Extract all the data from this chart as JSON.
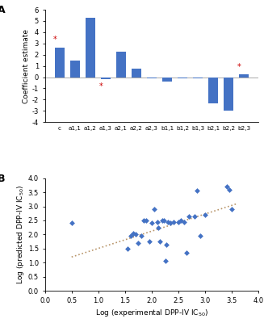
{
  "panel_a": {
    "categories": [
      "c",
      "a1,1",
      "a1,2",
      "a1,3",
      "a2,1",
      "a2,2",
      "a2,3",
      "b1,1",
      "b1,2",
      "b1,3",
      "b2,1",
      "b2,2",
      "b2,3"
    ],
    "values": [
      2.65,
      1.45,
      5.25,
      -0.2,
      2.25,
      0.75,
      -0.12,
      -0.38,
      -0.08,
      -0.08,
      -2.35,
      -3.0,
      0.22
    ],
    "significant": [
      true,
      false,
      false,
      true,
      false,
      false,
      false,
      false,
      false,
      false,
      false,
      false,
      true
    ],
    "bar_color": "#4472c4",
    "star_color": "#cc0000",
    "ylabel": "Coefficient estimate",
    "ylim": [
      -4,
      6
    ],
    "yticks": [
      -4,
      -3,
      -2,
      -1,
      0,
      1,
      2,
      3,
      4,
      5,
      6
    ],
    "panel_label": "A"
  },
  "panel_b": {
    "scatter_x": [
      0.5,
      1.55,
      1.6,
      1.65,
      1.7,
      1.75,
      1.8,
      1.85,
      1.9,
      1.95,
      2.0,
      2.05,
      2.1,
      2.12,
      2.15,
      2.2,
      2.22,
      2.25,
      2.27,
      2.3,
      2.35,
      2.4,
      2.5,
      2.55,
      2.6,
      2.65,
      2.7,
      2.8,
      2.85,
      2.9,
      3.0,
      3.4,
      3.45,
      3.5
    ],
    "scatter_y": [
      2.4,
      1.5,
      1.95,
      2.05,
      2.0,
      1.7,
      1.95,
      2.5,
      2.5,
      1.75,
      2.4,
      2.9,
      2.45,
      2.25,
      1.75,
      2.5,
      2.5,
      1.05,
      1.65,
      2.45,
      2.4,
      2.45,
      2.45,
      2.5,
      2.45,
      1.35,
      2.65,
      2.65,
      3.55,
      1.95,
      2.7,
      3.7,
      3.6,
      2.9
    ],
    "trendline_x": [
      0.5,
      3.6
    ],
    "trendline_y": [
      1.2,
      3.1
    ],
    "scatter_color": "#4472c4",
    "trendline_color": "#b8956a",
    "xlabel": "Log (experimental DPP-IV IC$_{50}$)",
    "ylabel": "Log (predicted DPP-IV IC$_{50}$)",
    "xlim": [
      0.0,
      4.0
    ],
    "ylim": [
      0.0,
      4.0
    ],
    "xticks": [
      0.0,
      0.5,
      1.0,
      1.5,
      2.0,
      2.5,
      3.0,
      3.5,
      4.0
    ],
    "yticks": [
      0.0,
      0.5,
      1.0,
      1.5,
      2.0,
      2.5,
      3.0,
      3.5,
      4.0
    ],
    "panel_label": "B"
  },
  "background_color": "#ffffff",
  "fig_width": 3.27,
  "fig_height": 4.0
}
